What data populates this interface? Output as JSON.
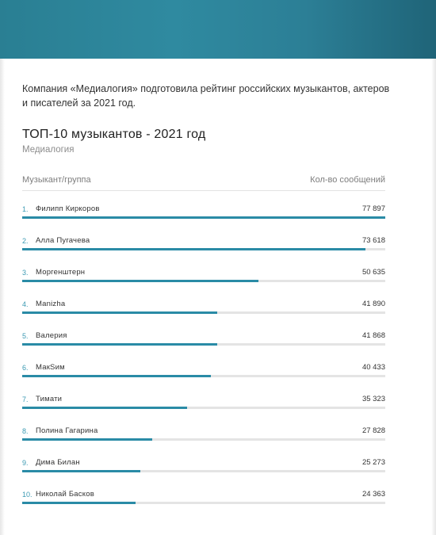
{
  "intro": "Компания «Медиалогия» подготовила рейтинг российских музыкантов, актеров и писателей за 2021 год.",
  "colors": {
    "header": "#2a7f93",
    "bar": "#2a8ba6",
    "track": "#e4e4e4",
    "rank": "#3c9ab3"
  },
  "chart_data": {
    "type": "bar",
    "orientation": "horizontal",
    "title": "ТОП-10 музыкантов - 2021 год",
    "subtitle": "Медиалогия",
    "xlabel": "Кол-во сообщений",
    "ylabel": "Музыкант/группа",
    "xlim": [
      0,
      77897
    ],
    "grid": false,
    "ranks": [
      "1.",
      "2.",
      "3.",
      "4.",
      "5.",
      "6.",
      "7.",
      "8.",
      "9.",
      "10."
    ],
    "categories": [
      "Филипп Киркоров",
      "Алла Пугачева",
      "Моргенштерн",
      "Manizha",
      "Валерия",
      "МакSим",
      "Тимати",
      "Полина Гагарина",
      "Дима Билан",
      "Николай Басков"
    ],
    "values": [
      77897,
      73618,
      50635,
      41890,
      41868,
      40433,
      35323,
      27828,
      25273,
      24363
    ],
    "value_labels": [
      "77 897",
      "73 618",
      "50 635",
      "41 890",
      "41 868",
      "40 433",
      "35 323",
      "27 828",
      "25 273",
      "24 363"
    ]
  }
}
